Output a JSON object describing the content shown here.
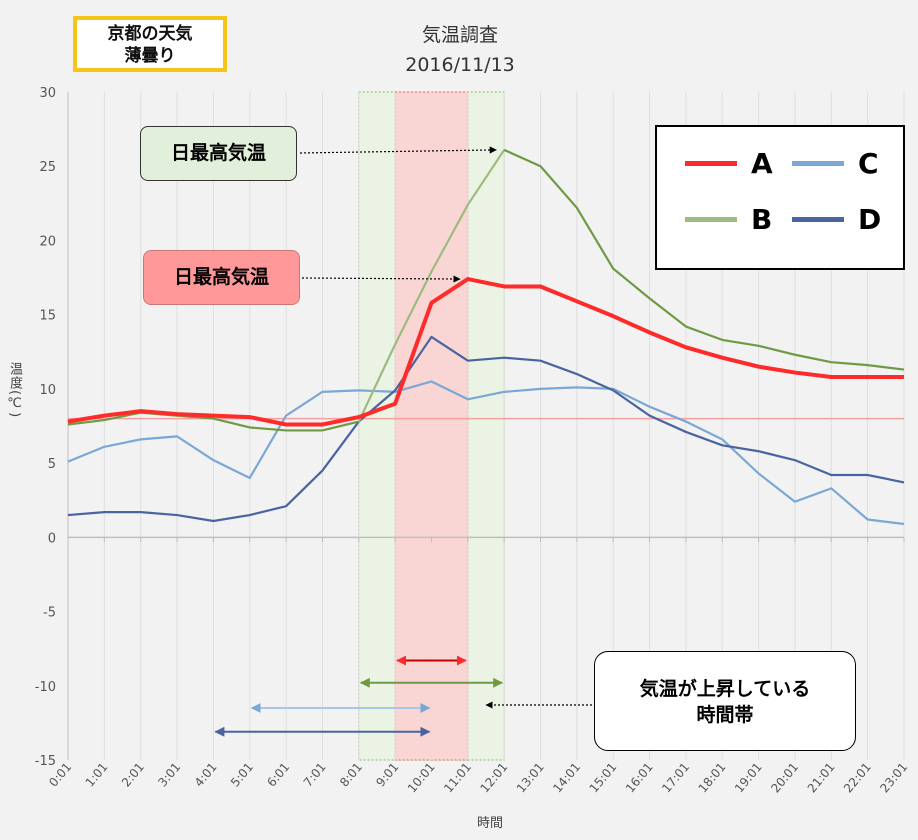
{
  "weather_box": {
    "line1": "京都の天気",
    "line2": "薄曇り"
  },
  "title": {
    "line1": "気温調査",
    "line2": "2016/11/13"
  },
  "callouts": {
    "green": "日最高気温",
    "red": "日最高気温",
    "rise": {
      "line1": "気温が上昇している",
      "line2": "時間帯"
    }
  },
  "axis_titles": {
    "x": "時間",
    "y": "温度(℃)"
  },
  "legend": [
    {
      "key": "A",
      "label": "A",
      "color": "#ff2a2a"
    },
    {
      "key": "C",
      "label": "C",
      "color": "#7ba7d4"
    },
    {
      "key": "B",
      "label": "B",
      "color": "#9dbb7f"
    },
    {
      "key": "D",
      "label": "D",
      "color": "#4a64a0"
    }
  ],
  "colors": {
    "A": "#ff2a2a",
    "B_line": "#6f9a45",
    "B_rise": "#9dbb7f",
    "C": "#7ba7d4",
    "D": "#4a64a0",
    "reference_line": "#f5a0a0",
    "red_band": "#f9d6d3",
    "green_band": "#ebf4e4"
  },
  "chart_data": {
    "type": "line",
    "x": [
      "0:01",
      "1:01",
      "2:01",
      "3:01",
      "4:01",
      "5:01",
      "6:01",
      "7:01",
      "8:01",
      "9:01",
      "10:01",
      "11:01",
      "12:01",
      "13:01",
      "14:01",
      "15:01",
      "16:01",
      "17:01",
      "18:01",
      "19:01",
      "20:01",
      "21:01",
      "22:01",
      "23:01"
    ],
    "xlabel": "時間",
    "ylabel": "温度(℃)",
    "ylim": [
      -15,
      30
    ],
    "yticks": [
      30,
      25,
      20,
      15,
      10,
      5,
      0,
      -5,
      -10,
      -15
    ],
    "grid": "vertical",
    "legend_position": "top-right",
    "series": [
      {
        "name": "A",
        "values": [
          7.8,
          8.2,
          8.5,
          8.3,
          8.2,
          8.1,
          7.6,
          7.6,
          8.1,
          9.0,
          15.8,
          17.4,
          16.9,
          16.9,
          15.9,
          14.9,
          13.8,
          12.8,
          12.1,
          11.5,
          11.1,
          10.8,
          10.8,
          10.8
        ]
      },
      {
        "name": "B",
        "values": [
          7.6,
          7.9,
          8.4,
          8.2,
          8.0,
          7.4,
          7.2,
          7.2,
          7.8,
          13.0,
          17.9,
          22.4,
          26.1,
          25.0,
          22.2,
          18.1,
          16.1,
          14.2,
          13.3,
          12.9,
          12.3,
          11.8,
          11.6,
          11.3
        ]
      },
      {
        "name": "C",
        "values": [
          5.1,
          6.1,
          6.6,
          6.8,
          5.2,
          4.0,
          8.2,
          9.8,
          9.9,
          9.8,
          10.5,
          9.3,
          9.8,
          10.0,
          10.1,
          10.0,
          8.8,
          7.8,
          6.6,
          4.3,
          2.4,
          3.3,
          1.2,
          0.9
        ]
      },
      {
        "name": "D",
        "values": [
          1.5,
          1.7,
          1.7,
          1.5,
          1.1,
          1.5,
          2.1,
          4.5,
          7.8,
          9.9,
          13.5,
          11.9,
          12.1,
          11.9,
          11.0,
          9.9,
          8.2,
          7.1,
          6.2,
          5.8,
          5.2,
          4.2,
          4.2,
          3.7
        ]
      }
    ],
    "reference_line_y": 8,
    "annotations": {
      "green_band_x": [
        "8:01",
        "12:01"
      ],
      "red_band_x": [
        "9:01",
        "11:01"
      ],
      "rise_arrows": [
        {
          "series": "A",
          "from": "9:01",
          "to": "11:01",
          "y": -8.3
        },
        {
          "series": "B",
          "from": "8:01",
          "to": "12:01",
          "y": -9.8
        },
        {
          "series": "C",
          "from": "5:01",
          "to": "10:01",
          "y": -11.5
        },
        {
          "series": "D",
          "from": "4:01",
          "to": "10:01",
          "y": -13.1
        }
      ],
      "max_pointers": [
        {
          "series": "B",
          "target_x": "12:01",
          "target_y": 26.1
        },
        {
          "series": "A",
          "target_x": "11:01",
          "target_y": 17.4
        }
      ]
    }
  }
}
